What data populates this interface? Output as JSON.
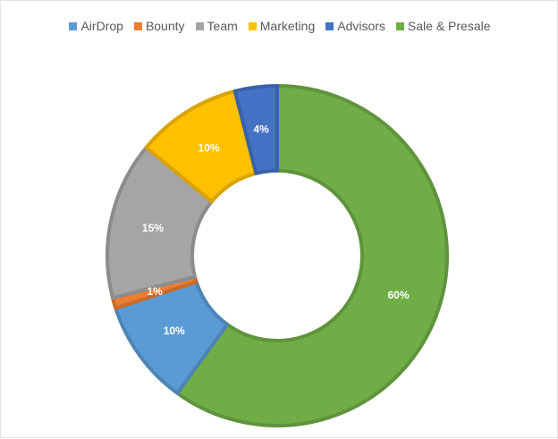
{
  "chart_data": {
    "type": "pie",
    "variant": "donut",
    "title": "",
    "legend_position": "top",
    "categories": [
      "AirDrop",
      "Bounty",
      "Team",
      "Marketing",
      "Advisors",
      "Sale & Presale"
    ],
    "values": [
      10,
      1,
      15,
      10,
      4,
      60
    ],
    "labels": [
      "10%",
      "1%",
      "15%",
      "10%",
      "4%",
      "60%"
    ],
    "colors": [
      "#5B9BD5",
      "#ED7D31",
      "#A5A5A5",
      "#FFC000",
      "#4472C4",
      "#70AD47"
    ]
  }
}
